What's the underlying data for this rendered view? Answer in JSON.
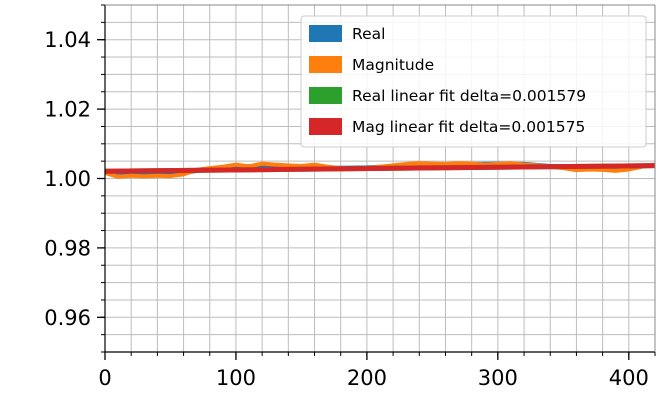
{
  "chart_data": {
    "type": "area",
    "xlim": [
      0,
      420
    ],
    "ylim": [
      0.95,
      1.05
    ],
    "grid": true,
    "x_ticks": [
      0,
      100,
      200,
      300,
      400
    ],
    "x_tick_labels": [
      "0",
      "100",
      "200",
      "300",
      "400"
    ],
    "y_ticks": [
      0.96,
      0.98,
      1.0,
      1.02,
      1.04
    ],
    "y_tick_labels": [
      "0.96",
      "0.98",
      "1.00",
      "1.02",
      "1.04"
    ],
    "legend_position": "top-right",
    "series": [
      {
        "name": "Real",
        "color": "#1f77b4",
        "x": [
          0,
          20,
          40,
          60,
          80,
          100,
          120,
          140,
          160,
          180,
          200,
          220,
          240,
          260,
          280,
          300,
          320,
          340,
          360,
          380,
          400,
          420
        ],
        "values": [
          1.0018,
          1.0015,
          1.0015,
          1.0016,
          1.0027,
          1.0033,
          1.0038,
          1.0036,
          1.0034,
          1.0031,
          1.0032,
          1.0036,
          1.004,
          1.0041,
          1.0042,
          1.0043,
          1.0042,
          1.0036,
          1.003,
          1.0028,
          1.0031,
          1.0038
        ]
      },
      {
        "name": "Magnitude",
        "color": "#ff7f0e",
        "x": [
          0,
          10,
          20,
          30,
          40,
          50,
          60,
          70,
          80,
          90,
          100,
          110,
          120,
          130,
          140,
          150,
          160,
          170,
          180,
          190,
          200,
          210,
          220,
          230,
          240,
          250,
          260,
          270,
          280,
          290,
          300,
          310,
          320,
          330,
          340,
          350,
          360,
          370,
          380,
          390,
          400,
          410,
          420
        ],
        "values": [
          1.0016,
          1.0005,
          1.0008,
          1.0006,
          1.0008,
          1.0007,
          1.0012,
          1.0025,
          1.003,
          1.0034,
          1.004,
          1.0035,
          1.0043,
          1.004,
          1.0038,
          1.0036,
          1.004,
          1.0034,
          1.003,
          1.0028,
          1.003,
          1.0034,
          1.0038,
          1.0042,
          1.0044,
          1.0043,
          1.0042,
          1.0044,
          1.0043,
          1.004,
          1.0042,
          1.0044,
          1.004,
          1.0038,
          1.0034,
          1.003,
          1.0024,
          1.0026,
          1.0025,
          1.0022,
          1.0026,
          1.0034,
          1.004
        ]
      },
      {
        "name": "Real linear fit delta=0.001579",
        "color": "#2ca02c",
        "x": [
          0,
          420
        ],
        "values": [
          1.0021,
          1.0037
        ]
      },
      {
        "name": "Mag linear fit delta=0.001575",
        "color": "#d62728",
        "x": [
          0,
          420
        ],
        "values": [
          1.0021,
          1.0037
        ]
      }
    ]
  }
}
